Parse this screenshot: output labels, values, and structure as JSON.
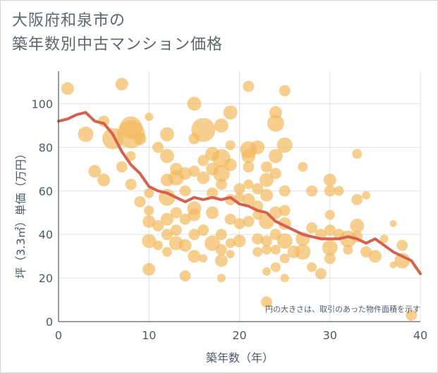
{
  "title_line1": "大阪府和泉市の",
  "title_line2": "築年数別中古マンション価格",
  "chart_data": {
    "type": "scatter",
    "title": "大阪府和泉市の築年数別中古マンション価格",
    "xlabel": "築年数（年）",
    "ylabel": "坪（3.3㎡）単価（万円）",
    "xlim": [
      0,
      40
    ],
    "ylim": [
      0,
      115
    ],
    "xticks": [
      0,
      10,
      20,
      30,
      40
    ],
    "yticks": [
      0,
      20,
      40,
      60,
      80,
      100
    ],
    "grid": true,
    "note": "円の大きさは、取引のあった物件面積を示す",
    "colors": {
      "bubble": "#f2b95e",
      "trend": "#d4604f",
      "grid": "#d9e1e8"
    },
    "points": [
      {
        "x": 1,
        "y": 107,
        "s": 9
      },
      {
        "x": 3,
        "y": 86,
        "s": 11
      },
      {
        "x": 5,
        "y": 92,
        "s": 8
      },
      {
        "x": 4,
        "y": 69,
        "s": 9
      },
      {
        "x": 5,
        "y": 65,
        "s": 9
      },
      {
        "x": 6,
        "y": 84,
        "s": 15
      },
      {
        "x": 7,
        "y": 109,
        "s": 9
      },
      {
        "x": 7,
        "y": 71,
        "s": 8
      },
      {
        "x": 8,
        "y": 89,
        "s": 16
      },
      {
        "x": 8,
        "y": 86,
        "s": 20
      },
      {
        "x": 8,
        "y": 76,
        "s": 7
      },
      {
        "x": 8,
        "y": 63,
        "s": 8
      },
      {
        "x": 9,
        "y": 84,
        "s": 9
      },
      {
        "x": 9,
        "y": 55,
        "s": 8
      },
      {
        "x": 10,
        "y": 94,
        "s": 6
      },
      {
        "x": 10,
        "y": 59,
        "s": 7
      },
      {
        "x": 10,
        "y": 51,
        "s": 7
      },
      {
        "x": 10,
        "y": 46,
        "s": 9
      },
      {
        "x": 10,
        "y": 37,
        "s": 10
      },
      {
        "x": 10,
        "y": 24,
        "s": 9
      },
      {
        "x": 11,
        "y": 80,
        "s": 8
      },
      {
        "x": 11,
        "y": 44,
        "s": 8
      },
      {
        "x": 11,
        "y": 35,
        "s": 7
      },
      {
        "x": 12,
        "y": 86,
        "s": 10
      },
      {
        "x": 12,
        "y": 76,
        "s": 10
      },
      {
        "x": 12,
        "y": 65,
        "s": 9
      },
      {
        "x": 12,
        "y": 57,
        "s": 12
      },
      {
        "x": 12,
        "y": 47,
        "s": 9
      },
      {
        "x": 12,
        "y": 40,
        "s": 8
      },
      {
        "x": 12,
        "y": 32,
        "s": 7
      },
      {
        "x": 13,
        "y": 70,
        "s": 9
      },
      {
        "x": 13,
        "y": 66,
        "s": 11
      },
      {
        "x": 13,
        "y": 50,
        "s": 8
      },
      {
        "x": 13,
        "y": 42,
        "s": 8
      },
      {
        "x": 13,
        "y": 36,
        "s": 10
      },
      {
        "x": 14,
        "y": 68,
        "s": 9
      },
      {
        "x": 14,
        "y": 60,
        "s": 8
      },
      {
        "x": 14,
        "y": 47,
        "s": 8
      },
      {
        "x": 14,
        "y": 35,
        "s": 9
      },
      {
        "x": 14,
        "y": 21,
        "s": 8
      },
      {
        "x": 15,
        "y": 100,
        "s": 10
      },
      {
        "x": 15,
        "y": 84,
        "s": 8
      },
      {
        "x": 15,
        "y": 69,
        "s": 8
      },
      {
        "x": 15,
        "y": 52,
        "s": 10
      },
      {
        "x": 15,
        "y": 49,
        "s": 9
      },
      {
        "x": 15,
        "y": 40,
        "s": 8
      },
      {
        "x": 15,
        "y": 30,
        "s": 9
      },
      {
        "x": 16,
        "y": 88,
        "s": 17
      },
      {
        "x": 16,
        "y": 74,
        "s": 8
      },
      {
        "x": 16,
        "y": 66,
        "s": 9
      },
      {
        "x": 16,
        "y": 42,
        "s": 8
      },
      {
        "x": 16,
        "y": 29,
        "s": 6
      },
      {
        "x": 17,
        "y": 77,
        "s": 10
      },
      {
        "x": 17,
        "y": 70,
        "s": 9
      },
      {
        "x": 17,
        "y": 59,
        "s": 8
      },
      {
        "x": 17,
        "y": 50,
        "s": 9
      },
      {
        "x": 17,
        "y": 36,
        "s": 11
      },
      {
        "x": 18,
        "y": 90,
        "s": 10
      },
      {
        "x": 18,
        "y": 75,
        "s": 13
      },
      {
        "x": 18,
        "y": 68,
        "s": 12
      },
      {
        "x": 18,
        "y": 63,
        "s": 8
      },
      {
        "x": 18,
        "y": 40,
        "s": 8
      },
      {
        "x": 18,
        "y": 33,
        "s": 8
      },
      {
        "x": 18,
        "y": 28,
        "s": 9
      },
      {
        "x": 18,
        "y": 20,
        "s": 6
      },
      {
        "x": 19,
        "y": 96,
        "s": 10
      },
      {
        "x": 19,
        "y": 81,
        "s": 7
      },
      {
        "x": 19,
        "y": 72,
        "s": 9
      },
      {
        "x": 19,
        "y": 56,
        "s": 8
      },
      {
        "x": 19,
        "y": 47,
        "s": 8
      },
      {
        "x": 19,
        "y": 36,
        "s": 7
      },
      {
        "x": 19,
        "y": 31,
        "s": 6
      },
      {
        "x": 20,
        "y": 61,
        "s": 8
      },
      {
        "x": 20,
        "y": 57,
        "s": 7
      },
      {
        "x": 20,
        "y": 45,
        "s": 8
      },
      {
        "x": 20,
        "y": 37,
        "s": 9
      },
      {
        "x": 21,
        "y": 108,
        "s": 8
      },
      {
        "x": 21,
        "y": 79,
        "s": 12
      },
      {
        "x": 21,
        "y": 76,
        "s": 10
      },
      {
        "x": 21,
        "y": 71,
        "s": 8
      },
      {
        "x": 21,
        "y": 63,
        "s": 7
      },
      {
        "x": 21,
        "y": 56,
        "s": 9
      },
      {
        "x": 21,
        "y": 46,
        "s": 8
      },
      {
        "x": 22,
        "y": 80,
        "s": 10
      },
      {
        "x": 22,
        "y": 61,
        "s": 8
      },
      {
        "x": 22,
        "y": 53,
        "s": 8
      },
      {
        "x": 22,
        "y": 49,
        "s": 7
      },
      {
        "x": 22,
        "y": 38,
        "s": 8
      },
      {
        "x": 22,
        "y": 32,
        "s": 7
      },
      {
        "x": 23,
        "y": 71,
        "s": 8
      },
      {
        "x": 23,
        "y": 65,
        "s": 10
      },
      {
        "x": 23,
        "y": 58,
        "s": 9
      },
      {
        "x": 23,
        "y": 46,
        "s": 11
      },
      {
        "x": 23,
        "y": 37,
        "s": 8
      },
      {
        "x": 23,
        "y": 33,
        "s": 7
      },
      {
        "x": 23,
        "y": 23,
        "s": 6
      },
      {
        "x": 23,
        "y": 9,
        "s": 8
      },
      {
        "x": 24,
        "y": 96,
        "s": 9
      },
      {
        "x": 24,
        "y": 91,
        "s": 12
      },
      {
        "x": 24,
        "y": 76,
        "s": 10
      },
      {
        "x": 24,
        "y": 68,
        "s": 8
      },
      {
        "x": 24,
        "y": 50,
        "s": 9
      },
      {
        "x": 24,
        "y": 40,
        "s": 8
      },
      {
        "x": 24,
        "y": 33,
        "s": 7
      },
      {
        "x": 24,
        "y": 25,
        "s": 7
      },
      {
        "x": 25,
        "y": 106,
        "s": 8
      },
      {
        "x": 25,
        "y": 81,
        "s": 11
      },
      {
        "x": 25,
        "y": 60,
        "s": 8
      },
      {
        "x": 25,
        "y": 51,
        "s": 8
      },
      {
        "x": 25,
        "y": 45,
        "s": 9
      },
      {
        "x": 25,
        "y": 37,
        "s": 11
      },
      {
        "x": 25,
        "y": 29,
        "s": 7
      },
      {
        "x": 25,
        "y": 20,
        "s": 6
      },
      {
        "x": 26,
        "y": 32,
        "s": 9
      },
      {
        "x": 27,
        "y": 71,
        "s": 7
      },
      {
        "x": 27,
        "y": 38,
        "s": 10
      },
      {
        "x": 27,
        "y": 32,
        "s": 11
      },
      {
        "x": 28,
        "y": 60,
        "s": 8
      },
      {
        "x": 28,
        "y": 43,
        "s": 8
      },
      {
        "x": 28,
        "y": 25,
        "s": 7
      },
      {
        "x": 29,
        "y": 40,
        "s": 8
      },
      {
        "x": 29,
        "y": 22,
        "s": 8
      },
      {
        "x": 30,
        "y": 65,
        "s": 9
      },
      {
        "x": 30,
        "y": 60,
        "s": 8
      },
      {
        "x": 30,
        "y": 49,
        "s": 7
      },
      {
        "x": 30,
        "y": 42,
        "s": 8
      },
      {
        "x": 30,
        "y": 34,
        "s": 11
      },
      {
        "x": 30,
        "y": 29,
        "s": 8
      },
      {
        "x": 31,
        "y": 60,
        "s": 7
      },
      {
        "x": 31,
        "y": 40,
        "s": 8
      },
      {
        "x": 32,
        "y": 38,
        "s": 12
      },
      {
        "x": 32,
        "y": 33,
        "s": 7
      },
      {
        "x": 33,
        "y": 77,
        "s": 7
      },
      {
        "x": 33,
        "y": 56,
        "s": 8
      },
      {
        "x": 33,
        "y": 44,
        "s": 10
      },
      {
        "x": 33,
        "y": 39,
        "s": 8
      },
      {
        "x": 34,
        "y": 58,
        "s": 6
      },
      {
        "x": 34,
        "y": 32,
        "s": 8
      },
      {
        "x": 35,
        "y": 30,
        "s": 9
      },
      {
        "x": 36,
        "y": 38,
        "s": 6
      },
      {
        "x": 37,
        "y": 45,
        "s": 5
      },
      {
        "x": 37,
        "y": 26,
        "s": 5
      },
      {
        "x": 38,
        "y": 28,
        "s": 11
      },
      {
        "x": 38,
        "y": 35,
        "s": 8
      },
      {
        "x": 39,
        "y": 3,
        "s": 8
      }
    ],
    "trend": {
      "x": [
        0,
        1,
        2,
        3,
        4,
        5,
        6,
        7,
        8,
        9,
        10,
        11,
        12,
        13,
        14,
        15,
        16,
        17,
        18,
        19,
        20,
        21,
        22,
        23,
        24,
        25,
        26,
        27,
        28,
        29,
        30,
        31,
        32,
        33,
        34,
        35,
        36,
        37,
        38,
        39,
        40
      ],
      "y": [
        92,
        93,
        95,
        96,
        92,
        91,
        86,
        78,
        72,
        68,
        62,
        60,
        59,
        57,
        55,
        57,
        56,
        57,
        56,
        57,
        54,
        53,
        51,
        50,
        46,
        44,
        42,
        40,
        39,
        38,
        38,
        38,
        39,
        38,
        36,
        38,
        35,
        32,
        30,
        28,
        22
      ]
    }
  }
}
